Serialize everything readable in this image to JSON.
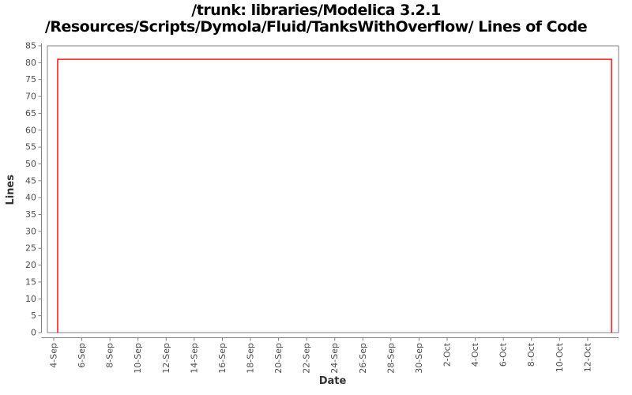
{
  "colors": {
    "series_red": "#ff0000",
    "axis_gray": "#808080",
    "tick_label_gray": "#4d4d4d",
    "axis_label_gray": "#333333",
    "title_black": "#000000",
    "background": "#ffffff"
  },
  "chart_data": {
    "type": "line",
    "title_lines": [
      "/trunk: libraries/Modelica 3.2.1",
      "/Resources/Scripts/Dymola/Fluid/TanksWithOverflow/ Lines of Code"
    ],
    "xlabel": "Date",
    "ylabel": "Lines",
    "grid": "off",
    "legend": "none",
    "y_axis": {
      "min": 0,
      "max": 85,
      "tick_step": 5
    },
    "x_axis": {
      "domain_days": [
        -0.45,
        40.2
      ],
      "ticks": [
        {
          "day": 0,
          "label": "4-Sep"
        },
        {
          "day": 2,
          "label": "6-Sep"
        },
        {
          "day": 4,
          "label": "8-Sep"
        },
        {
          "day": 6,
          "label": "10-Sep"
        },
        {
          "day": 8,
          "label": "12-Sep"
        },
        {
          "day": 10,
          "label": "14-Sep"
        },
        {
          "day": 12,
          "label": "16-Sep"
        },
        {
          "day": 14,
          "label": "18-Sep"
        },
        {
          "day": 16,
          "label": "20-Sep"
        },
        {
          "day": 18,
          "label": "22-Sep"
        },
        {
          "day": 20,
          "label": "24-Sep"
        },
        {
          "day": 22,
          "label": "26-Sep"
        },
        {
          "day": 24,
          "label": "28-Sep"
        },
        {
          "day": 26,
          "label": "30-Sep"
        },
        {
          "day": 28,
          "label": "2-Oct"
        },
        {
          "day": 30,
          "label": "4-Oct"
        },
        {
          "day": 32,
          "label": "6-Oct"
        },
        {
          "day": 34,
          "label": "8-Oct"
        },
        {
          "day": 36,
          "label": "10-Oct"
        },
        {
          "day": 38,
          "label": "12-Oct"
        }
      ]
    },
    "series": [
      {
        "name": "Lines of Code",
        "color": "#ff0000",
        "plateau_value": 81,
        "points": [
          [
            0.28,
            0
          ],
          [
            0.28,
            81
          ],
          [
            39.7,
            81
          ],
          [
            39.7,
            0
          ]
        ]
      }
    ]
  }
}
